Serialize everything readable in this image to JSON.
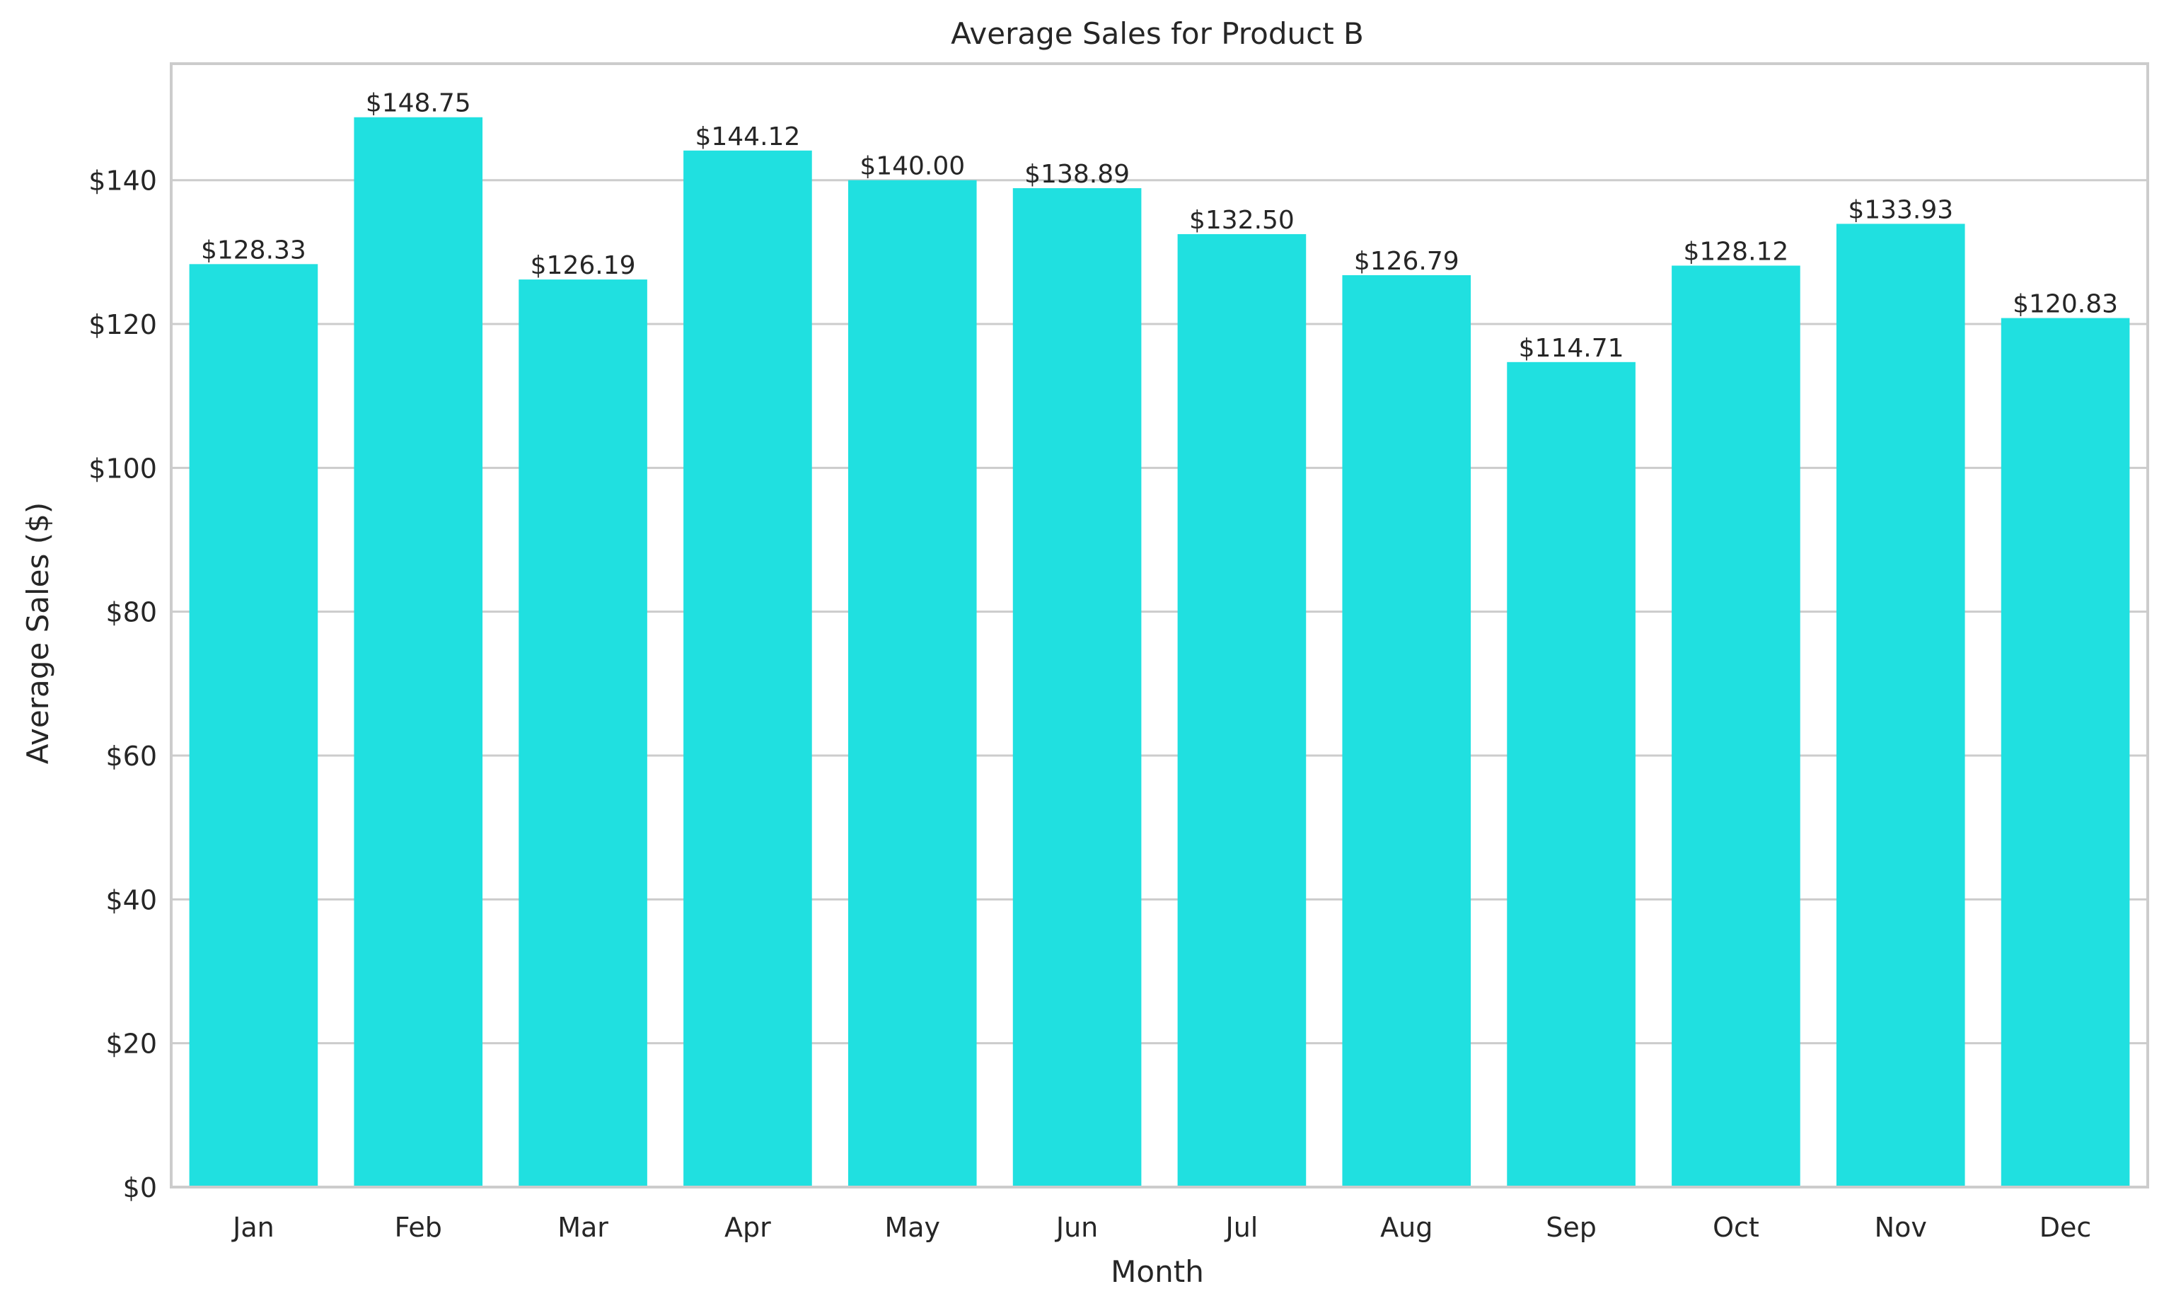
{
  "chart_data": {
    "type": "bar",
    "title": "Average Sales for Product B",
    "xlabel": "Month",
    "ylabel": "Average Sales ($)",
    "categories": [
      "Jan",
      "Feb",
      "Mar",
      "Apr",
      "May",
      "Jun",
      "Jul",
      "Aug",
      "Sep",
      "Oct",
      "Nov",
      "Dec"
    ],
    "values": [
      128.33,
      148.75,
      126.19,
      144.12,
      140.0,
      138.89,
      132.5,
      126.79,
      114.71,
      128.12,
      133.93,
      120.83
    ],
    "value_labels": [
      "$128.33",
      "$148.75",
      "$126.19",
      "$144.12",
      "$140.00",
      "$138.89",
      "$132.50",
      "$126.79",
      "$114.71",
      "$128.12",
      "$133.93",
      "$120.83"
    ],
    "ylim": [
      0,
      156.2
    ],
    "yticks": [
      0,
      20,
      40,
      60,
      80,
      100,
      120,
      140
    ],
    "ytick_labels": [
      "$0",
      "$20",
      "$40",
      "$60",
      "$80",
      "$100",
      "$120",
      "$140"
    ],
    "grid": true,
    "grid_axis": "y",
    "legend": "none",
    "colors": {
      "bar": "#20e0e0",
      "grid": "#cccccc",
      "frame": "#cccccc",
      "text": "#262626"
    }
  }
}
